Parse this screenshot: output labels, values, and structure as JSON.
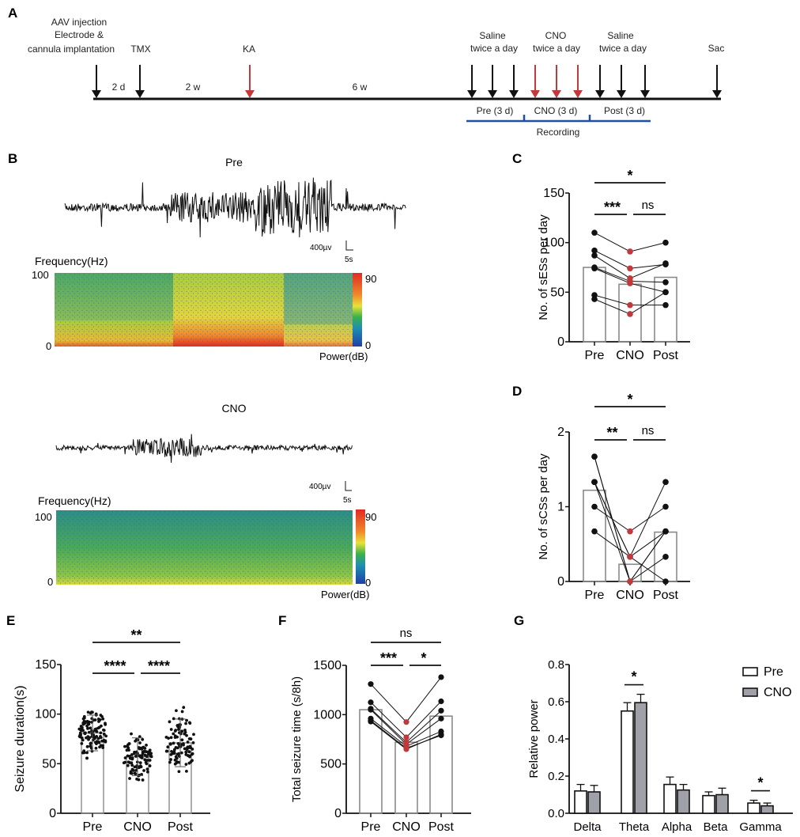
{
  "panel_labels": {
    "A": "A",
    "B": "B",
    "C": "C",
    "D": "D",
    "E": "E",
    "F": "F",
    "G": "G"
  },
  "timeline": {
    "events": [
      {
        "id": "aav",
        "lines": [
          "AAV injection",
          "Electrode &",
          "cannula implantation"
        ],
        "color": "black"
      },
      {
        "id": "tmx",
        "lines": [
          "TMX"
        ],
        "color": "black"
      },
      {
        "id": "ka",
        "lines": [
          "KA"
        ],
        "color": "red"
      },
      {
        "id": "saline1",
        "lines": [
          "Saline",
          "twice a day"
        ],
        "color": "black",
        "count": 3
      },
      {
        "id": "cno",
        "lines": [
          "CNO",
          "twice a day"
        ],
        "color": "red",
        "count": 3
      },
      {
        "id": "saline2",
        "lines": [
          "Saline",
          "twice a day"
        ],
        "color": "black",
        "count": 3
      },
      {
        "id": "sac",
        "lines": [
          "Sac"
        ],
        "color": "black"
      }
    ],
    "intervals": [
      "2 d",
      "2 w",
      "6 w"
    ],
    "phases": [
      "Pre (3 d)",
      "CNO (3 d)",
      "Post (3 d)"
    ],
    "recording_label": "Recording",
    "colors": {
      "black": "#111111",
      "red": "#c0393b",
      "blue": "#1f4fa3"
    }
  },
  "panel_b": {
    "traces": [
      {
        "title": "Pre",
        "scale_v": "400µv",
        "scale_t": "5s",
        "freq_label": "Frequency(Hz)",
        "f_max": "100",
        "f_min": "0",
        "cbar_max": "90",
        "cbar_min": "0",
        "power_label": "Power(dB)"
      },
      {
        "title": "CNO",
        "scale_v": "400µv",
        "scale_t": "5s",
        "freq_label": "Frequency(Hz)",
        "f_max": "100",
        "f_min": "0",
        "cbar_max": "90",
        "cbar_min": "0",
        "power_label": "Power(dB)"
      }
    ]
  },
  "chart_data": [
    {
      "id": "C",
      "type": "bar",
      "title": "",
      "ylabel": "No. of sESs per day",
      "categories": [
        "Pre",
        "CNO",
        "Post"
      ],
      "ylim": [
        0,
        150
      ],
      "yticks": [
        "0",
        "50",
        "100",
        "150"
      ],
      "bar_means": [
        75,
        58,
        65
      ],
      "paired_points": [
        [
          110,
          91,
          100
        ],
        [
          92,
          74,
          78
        ],
        [
          87,
          64,
          79
        ],
        [
          75,
          61,
          60
        ],
        [
          74,
          59,
          50
        ],
        [
          47,
          37,
          37
        ],
        [
          43,
          28,
          50
        ]
      ],
      "significance": [
        {
          "from": 0,
          "to": 2,
          "label": "*"
        },
        {
          "from": 0,
          "to": 1,
          "label": "***"
        },
        {
          "from": 1,
          "to": 2,
          "label": "ns"
        }
      ]
    },
    {
      "id": "D",
      "type": "bar",
      "title": "",
      "ylabel": "No. of sCSs per day",
      "categories": [
        "Pre",
        "CNO",
        "Post"
      ],
      "ylim": [
        0,
        2
      ],
      "yticks": [
        "0",
        "1",
        "2"
      ],
      "bar_means": [
        1.22,
        0.23,
        0.66
      ],
      "paired_points": [
        [
          1.67,
          0,
          0.67
        ],
        [
          1.33,
          0.33,
          1.33
        ],
        [
          1.33,
          0,
          0.33
        ],
        [
          1.0,
          0.67,
          1.0
        ],
        [
          0.67,
          0.33,
          0
        ],
        [
          1.67,
          0,
          0.67
        ],
        [
          1.33,
          0.33,
          0.67
        ]
      ],
      "significance": [
        {
          "from": 0,
          "to": 2,
          "label": "*"
        },
        {
          "from": 0,
          "to": 1,
          "label": "**"
        },
        {
          "from": 1,
          "to": 2,
          "label": "ns"
        }
      ]
    },
    {
      "id": "E",
      "type": "scatter",
      "title": "",
      "ylabel": "Seizure duration(s)",
      "categories": [
        "Pre",
        "CNO",
        "Post"
      ],
      "ylim": [
        0,
        150
      ],
      "yticks": [
        "0",
        "50",
        "100",
        "150"
      ],
      "bar_means": [
        81,
        57,
        71
      ],
      "sd": [
        18,
        19,
        24
      ],
      "ranges": [
        [
          54,
          114
        ],
        [
          28,
          92
        ],
        [
          34,
          112
        ]
      ],
      "n_points": [
        110,
        100,
        100
      ],
      "significance": [
        {
          "from": 0,
          "to": 2,
          "label": "**"
        },
        {
          "from": 0,
          "to": 1,
          "label": "****"
        },
        {
          "from": 1,
          "to": 2,
          "label": "****"
        }
      ]
    },
    {
      "id": "F",
      "type": "bar",
      "title": "",
      "ylabel": "Total seizure time (s/8h)",
      "categories": [
        "Pre",
        "CNO",
        "Post"
      ],
      "ylim": [
        0,
        1500
      ],
      "yticks": [
        "0",
        "500",
        "1000",
        "1500"
      ],
      "bar_means": [
        1050,
        720,
        985
      ],
      "paired_points": [
        [
          1310,
          925,
          1380
        ],
        [
          1125,
          770,
          1135
        ],
        [
          1060,
          720,
          1040
        ],
        [
          1050,
          700,
          960
        ],
        [
          960,
          680,
          830
        ],
        [
          940,
          660,
          790
        ],
        [
          930,
          650,
          800
        ]
      ],
      "significance": [
        {
          "from": 0,
          "to": 2,
          "label": "ns"
        },
        {
          "from": 0,
          "to": 1,
          "label": "***"
        },
        {
          "from": 1,
          "to": 2,
          "label": "*"
        }
      ]
    },
    {
      "id": "G",
      "type": "bar",
      "title": "",
      "ylabel": "Relative power",
      "categories": [
        "Delta",
        "Theta",
        "Alpha",
        "Beta",
        "Gamma"
      ],
      "ylim": [
        0,
        0.8
      ],
      "yticks": [
        "0.0",
        "0.2",
        "0.4",
        "0.6",
        "0.8"
      ],
      "series": [
        {
          "name": "Pre",
          "values": [
            0.12,
            0.55,
            0.155,
            0.095,
            0.055
          ],
          "errors": [
            0.035,
            0.045,
            0.04,
            0.02,
            0.015
          ],
          "color": "#ffffff"
        },
        {
          "name": "CNO",
          "values": [
            0.115,
            0.595,
            0.125,
            0.1,
            0.04
          ],
          "errors": [
            0.035,
            0.045,
            0.03,
            0.035,
            0.015
          ],
          "color": "#a0a0a8"
        }
      ],
      "legend": "top-right",
      "significance": [
        {
          "category": 1,
          "label": "*"
        },
        {
          "category": 4,
          "label": "*"
        }
      ]
    }
  ]
}
